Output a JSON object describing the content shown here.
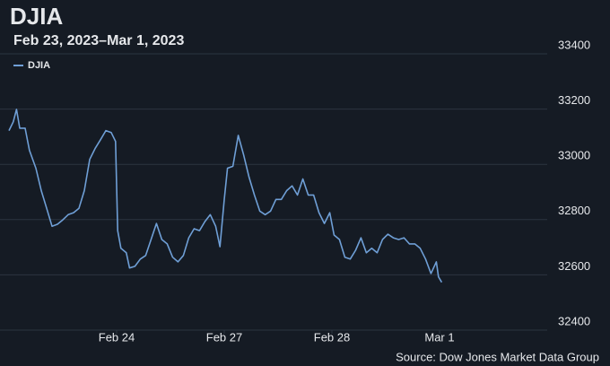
{
  "chart_data": {
    "type": "line",
    "title": "DJIA",
    "subtitle": "Feb 23, 2023–Mar 1, 2023",
    "source": "Source: Dow Jones Market Data Group",
    "x": [
      0,
      0.04,
      0.07,
      0.1,
      0.15,
      0.19,
      0.25,
      0.3,
      0.35,
      0.4,
      0.45,
      0.5,
      0.55,
      0.6,
      0.65,
      0.7,
      0.75,
      0.8,
      0.85,
      0.9,
      0.95,
      0.99,
      1.01,
      1.04,
      1.09,
      1.12,
      1.17,
      1.22,
      1.27,
      1.32,
      1.37,
      1.42,
      1.47,
      1.52,
      1.57,
      1.62,
      1.67,
      1.72,
      1.77,
      1.82,
      1.87,
      1.92,
      1.96,
      2.0,
      2.03,
      2.08,
      2.13,
      2.18,
      2.23,
      2.28,
      2.33,
      2.38,
      2.43,
      2.48,
      2.53,
      2.58,
      2.63,
      2.68,
      2.73,
      2.78,
      2.83,
      2.88,
      2.93,
      2.98,
      3.02,
      3.07,
      3.12,
      3.17,
      3.22,
      3.27,
      3.32,
      3.37,
      3.42,
      3.47,
      3.52,
      3.57,
      3.62,
      3.67,
      3.72,
      3.77,
      3.82,
      3.87,
      3.92,
      3.97,
      3.99,
      4.02
    ],
    "series": [
      {
        "name": "DJIA",
        "color": "#6f9fd6",
        "values": [
          33122,
          33154,
          33199,
          33131,
          33131,
          33051,
          32986,
          32905,
          32841,
          32776,
          32783,
          32799,
          32818,
          32825,
          32841,
          32905,
          33018,
          33057,
          33089,
          33122,
          33115,
          33083,
          32760,
          32696,
          32680,
          32625,
          32631,
          32657,
          32670,
          32728,
          32786,
          32728,
          32712,
          32664,
          32647,
          32670,
          32734,
          32767,
          32760,
          32793,
          32818,
          32776,
          32702,
          32873,
          32986,
          32993,
          33105,
          33034,
          32954,
          32889,
          32831,
          32818,
          32831,
          32873,
          32873,
          32905,
          32922,
          32889,
          32947,
          32889,
          32889,
          32825,
          32786,
          32825,
          32744,
          32728,
          32664,
          32657,
          32689,
          32734,
          32680,
          32696,
          32680,
          32728,
          32747,
          32734,
          32728,
          32734,
          32712,
          32712,
          32696,
          32657,
          32605,
          32647,
          32593,
          32573
        ]
      }
    ],
    "xlim": [
      0,
      5
    ],
    "xticks": [
      {
        "value": 1,
        "label": "Feb 24"
      },
      {
        "value": 2,
        "label": "Feb 27"
      },
      {
        "value": 3,
        "label": "Feb 28"
      },
      {
        "value": 4,
        "label": "Mar 1"
      }
    ],
    "ylim": [
      32400,
      33400
    ],
    "yticks": [
      32400,
      32600,
      32800,
      33000,
      33200,
      33400
    ],
    "grid": true
  }
}
